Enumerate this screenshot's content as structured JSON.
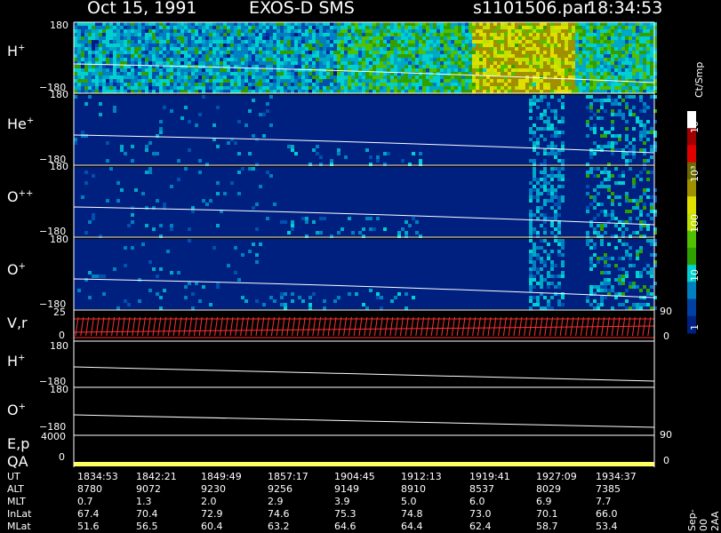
{
  "header": {
    "date": "Oct 15, 1991",
    "title": "EXOS-D SMS",
    "file": "s1101506.par",
    "time": "18:34:53"
  },
  "panels": [
    {
      "label": "H",
      "sup": "+",
      "top": "180",
      "bottom": "−180"
    },
    {
      "label": "He",
      "sup": "+",
      "top": "180",
      "bottom": "−180"
    },
    {
      "label": "O",
      "sup": "++",
      "top": "180",
      "bottom": "−180"
    },
    {
      "label": "O",
      "sup": "+",
      "top": "180",
      "bottom": "−180"
    },
    {
      "label": "V,r",
      "sup": "",
      "top": "25",
      "bottom": "0",
      "right_top": "90",
      "right_bottom": "0"
    },
    {
      "label": "H",
      "sup": "+",
      "top": "180",
      "bottom": "−180"
    },
    {
      "label": "O",
      "sup": "+",
      "top": "180",
      "bottom": "−180"
    },
    {
      "label": "E,p",
      "sup": "",
      "top": "4000",
      "bottom": "",
      "right_top": "90",
      "right_bottom": ""
    },
    {
      "label": "QA",
      "sup": "",
      "top": "",
      "bottom": "0",
      "right_top": "",
      "right_bottom": "0"
    }
  ],
  "colorbar": {
    "unit": "Ct/Smp",
    "labels": [
      "10⁴",
      "10³",
      "100",
      "10",
      "1"
    ],
    "colors": [
      "#ffffff",
      "#a00000",
      "#e00000",
      "#6a6a00",
      "#a09000",
      "#e0e000",
      "#c0e000",
      "#50c000",
      "#30a000",
      "#00d0d0",
      "#0080c0",
      "#0040a0",
      "#002080"
    ]
  },
  "footer": {
    "rows": [
      {
        "name": "UT",
        "values": [
          "1834:53",
          "1842:21",
          "1849:49",
          "1857:17",
          "1904:45",
          "1912:13",
          "1919:41",
          "1927:09",
          "1934:37"
        ]
      },
      {
        "name": "ALT",
        "values": [
          "8780",
          "9072",
          "9230",
          "9256",
          "9149",
          "8910",
          "8537",
          "8029",
          "7385"
        ]
      },
      {
        "name": "MLT",
        "values": [
          "0.7",
          "1.3",
          "2.0",
          "2.9",
          "3.9",
          "5.0",
          "6.0",
          "6.9",
          "7.7"
        ]
      },
      {
        "name": "InLat",
        "values": [
          "67.4",
          "70.4",
          "72.9",
          "74.6",
          "75.3",
          "74.8",
          "73.0",
          "70.1",
          "66.0"
        ]
      },
      {
        "name": "MLat",
        "values": [
          "51.6",
          "56.5",
          "60.4",
          "63.2",
          "64.6",
          "64.4",
          "62.4",
          "58.7",
          "53.4"
        ]
      }
    ],
    "side_note": "Sep-00 2AA"
  },
  "chart_data": {
    "type": "heatmap",
    "title": "Oct 15, 1991   EXOS-D SMS",
    "xlabel": "UT",
    "x_ticks": [
      "1834:53",
      "1842:21",
      "1849:49",
      "1857:17",
      "1904:45",
      "1912:13",
      "1919:41",
      "1927:09",
      "1934:37"
    ],
    "series": [
      {
        "name": "H+",
        "ylim": [
          -180,
          180
        ]
      },
      {
        "name": "He+",
        "ylim": [
          -180,
          180
        ]
      },
      {
        "name": "O++",
        "ylim": [
          -180,
          180
        ]
      },
      {
        "name": "O+",
        "ylim": [
          -180,
          180
        ]
      }
    ],
    "colorscale_unit": "Ct/Smp",
    "colorscale_range": [
      1,
      10000
    ]
  }
}
